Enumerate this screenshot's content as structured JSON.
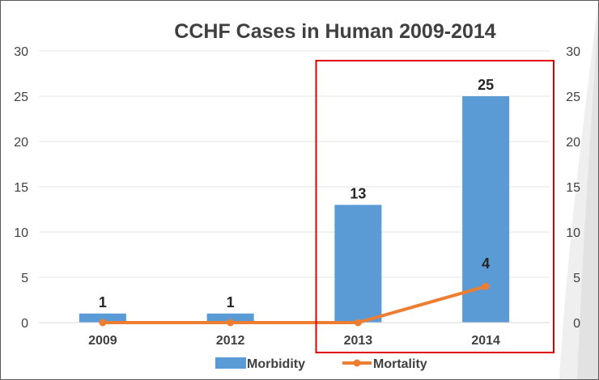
{
  "chart_data": {
    "type": "bar",
    "title": "CCHF Cases in Human 2009-2014",
    "categories": [
      "2009",
      "2012",
      "2013",
      "2014"
    ],
    "series": [
      {
        "name": "Morbidity",
        "kind": "bar",
        "values": [
          1,
          1,
          13,
          25
        ],
        "color": "#5b9bd5"
      },
      {
        "name": "Mortality",
        "kind": "line",
        "values": [
          0,
          0,
          0,
          4
        ],
        "color": "#ed7d31"
      }
    ],
    "data_labels": [
      {
        "series": "Morbidity",
        "category": "2009",
        "text": "1"
      },
      {
        "series": "Morbidity",
        "category": "2012",
        "text": "1"
      },
      {
        "series": "Morbidity",
        "category": "2013",
        "text": "13"
      },
      {
        "series": "Morbidity",
        "category": "2014",
        "text": "25"
      },
      {
        "series": "Mortality",
        "category": "2014",
        "text": "4"
      }
    ],
    "y_left": {
      "min": 0,
      "max": 30,
      "ticks": [
        "0",
        "5",
        "10",
        "15",
        "20",
        "25",
        "30"
      ]
    },
    "y_right": {
      "min": 0,
      "max": 30,
      "ticks": [
        "0",
        "5",
        "10",
        "15",
        "20",
        "25",
        "30"
      ]
    },
    "grid": true,
    "legend": {
      "position": "bottom",
      "entries": [
        "Morbidity",
        "Mortality"
      ]
    },
    "highlight": {
      "categories": [
        "2013",
        "2014"
      ],
      "color": "#e00000"
    }
  }
}
